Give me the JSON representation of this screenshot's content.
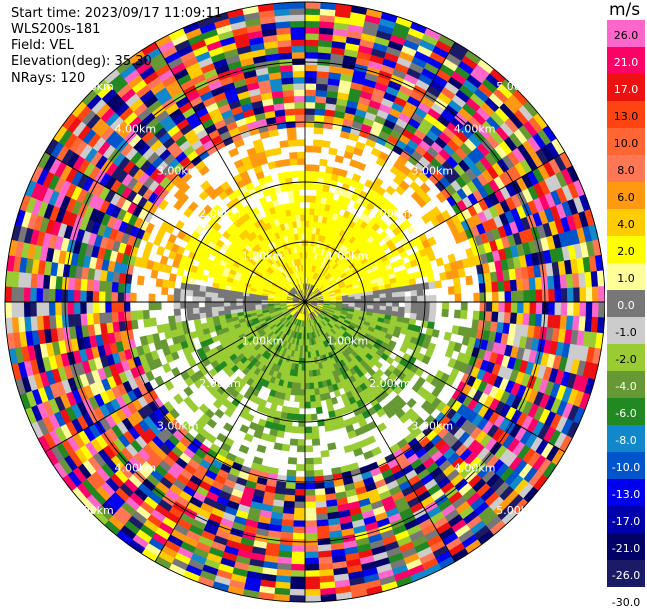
{
  "header": {
    "start_time": "Start time: 2023/09/17 11:09:11",
    "instrument": "WLS200s-181",
    "field": "Field: VEL",
    "elevation": "Elevation(deg): 35.30",
    "nrays": "NRays: 120"
  },
  "colorbar": {
    "unit": "m/s",
    "labels": [
      "26.0",
      "21.0",
      "17.0",
      "13.0",
      "10.0",
      "8.0",
      "6.0",
      "4.0",
      "2.0",
      "1.0",
      "0.0",
      "-1.0",
      "-2.0",
      "-4.0",
      "-6.0",
      "-8.0",
      "-10.0",
      "-13.0",
      "-17.0",
      "-21.0",
      "-26.0",
      "-30.0"
    ],
    "colors": [
      "#ff66cc",
      "#ff0066",
      "#ee1111",
      "#ff4411",
      "#ff6633",
      "#ff7755",
      "#ff9911",
      "#ffcc00",
      "#ffff00",
      "#ffff99",
      "#777777",
      "#cccccc",
      "#99cc33",
      "#669933",
      "#228822",
      "#1188cc",
      "#0055cc",
      "#0000ee",
      "#0000aa",
      "#000066",
      "#1a1a66"
    ]
  },
  "range_rings": {
    "labels": [
      "1.00km",
      "2.00km",
      "3.00km",
      "4.00km",
      "5.00km"
    ]
  }
}
